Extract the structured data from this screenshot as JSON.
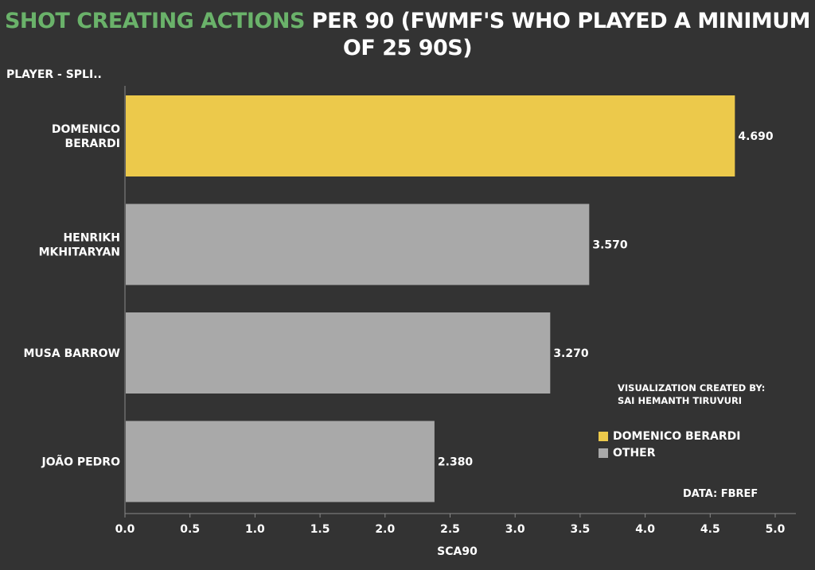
{
  "title": {
    "highlight": "SHOT CREATING ACTIONS",
    "rest": " PER 90 (FWMF'S WHO PLAYED A MINIMUM OF 25 90S)"
  },
  "column_header": "PLAYER - SPLI..",
  "annotation": "VISUALIZATION CREATED BY: SAI HEMANTH TIRUVURI",
  "source": "DATA: FBREF",
  "colors": {
    "highlight": "#ecc94b",
    "other": "#a9a9a9",
    "background": "#333333",
    "title_accent": "#6ab26a"
  },
  "legend": {
    "items": [
      {
        "label": "DOMENICO BERARDI",
        "color": "#ecc94b"
      },
      {
        "label": "OTHER",
        "color": "#a9a9a9"
      }
    ]
  },
  "chart_data": {
    "type": "bar",
    "orientation": "horizontal",
    "categories": [
      [
        "DOMENICO",
        "BERARDI"
      ],
      [
        "HENRIKH",
        "MKHITARYAN"
      ],
      [
        "MUSA BARROW"
      ],
      [
        "JOÃO PEDRO"
      ]
    ],
    "values": [
      4.69,
      3.57,
      3.27,
      2.38
    ],
    "value_labels": [
      "4.690",
      "3.570",
      "3.270",
      "2.380"
    ],
    "groups": [
      "DOMENICO BERARDI",
      "OTHER",
      "OTHER",
      "OTHER"
    ],
    "xlabel": "SCA90",
    "xlim": [
      0,
      5.1
    ],
    "xticks": [
      "0.0",
      "0.5",
      "1.0",
      "1.5",
      "2.0",
      "2.5",
      "3.0",
      "3.5",
      "4.0",
      "4.5",
      "5.0"
    ],
    "grid": false,
    "legend_position": "right"
  }
}
